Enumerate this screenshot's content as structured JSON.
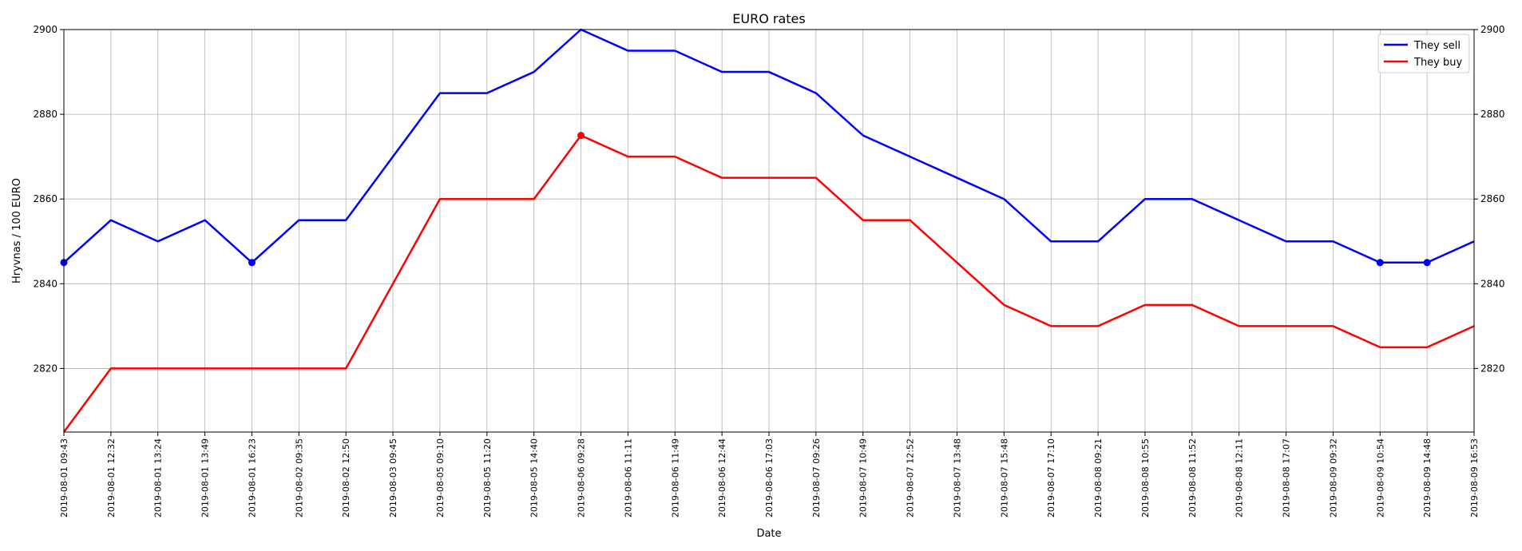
{
  "chart_data": {
    "type": "line",
    "title": "EURO rates",
    "xlabel": "Date",
    "ylabel": "Hryvnas / 100 EURO",
    "ylim": [
      2805,
      2900
    ],
    "y_ticks": [
      2820,
      2840,
      2860,
      2880,
      2900
    ],
    "grid": true,
    "legend_position": "top-right",
    "x": [
      "2019-08-01 09:43",
      "2019-08-01 12:32",
      "2019-08-01 13:24",
      "2019-08-01 13:49",
      "2019-08-01 16:23",
      "2019-08-02 09:35",
      "2019-08-02 12:50",
      "2019-08-03 09:45",
      "2019-08-05 09:10",
      "2019-08-05 11:20",
      "2019-08-05 14:40",
      "2019-08-06 09:28",
      "2019-08-06 11:11",
      "2019-08-06 11:49",
      "2019-08-06 12:44",
      "2019-08-06 17:03",
      "2019-08-07 09:26",
      "2019-08-07 10:49",
      "2019-08-07 12:52",
      "2019-08-07 13:48",
      "2019-08-07 15:48",
      "2019-08-07 17:10",
      "2019-08-08 09:21",
      "2019-08-08 10:55",
      "2019-08-08 11:52",
      "2019-08-08 12:11",
      "2019-08-08 17:07",
      "2019-08-09 09:32",
      "2019-08-09 10:54",
      "2019-08-09 14:48",
      "2019-08-09 16:53"
    ],
    "series": [
      {
        "name": "They sell",
        "color": "#0000ff",
        "values": [
          2845,
          2855,
          2850,
          2855,
          2845,
          2855,
          2855,
          2870,
          2885,
          2885,
          2890,
          2900,
          2895,
          2895,
          2890,
          2890,
          2885,
          2875,
          2870,
          2865,
          2860,
          2850,
          2850,
          2860,
          2860,
          2855,
          2850,
          2850,
          2845,
          2845,
          2850
        ],
        "marker_indices": [
          0,
          4,
          28,
          29
        ]
      },
      {
        "name": "They buy",
        "color": "#ff0000",
        "values": [
          2805,
          2820,
          2820,
          2820,
          2820,
          2820,
          2820,
          2840,
          2860,
          2860,
          2860,
          2875,
          2870,
          2870,
          2865,
          2865,
          2865,
          2855,
          2855,
          2845,
          2835,
          2830,
          2830,
          2835,
          2835,
          2830,
          2830,
          2830,
          2825,
          2825,
          2830
        ],
        "marker_indices": [
          11
        ]
      }
    ]
  }
}
